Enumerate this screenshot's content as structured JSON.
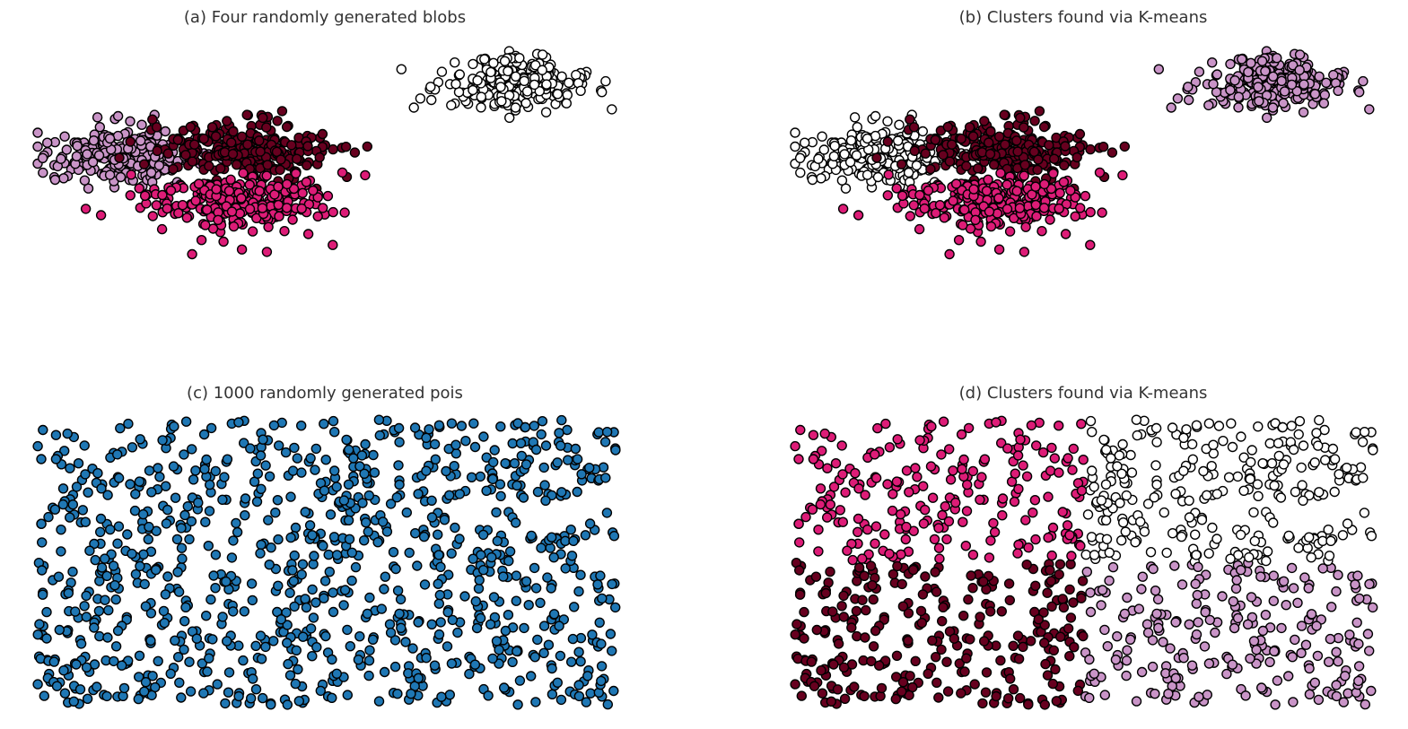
{
  "chart_data": [
    {
      "type": "scatter",
      "title": "(a) Four randomly generated blobs",
      "xlim": [
        -6,
        5.6
      ],
      "ylim": [
        -3.2,
        2.9
      ],
      "grid": false,
      "axes_visible": false,
      "marker_edge_color": "#000000",
      "clusters": [
        {
          "color": "#ffffff",
          "n": 250,
          "center": [
            3.5,
            2.0
          ],
          "spread": [
            0.7,
            0.28
          ],
          "outliers": [
            [
              1.3,
              2.3
            ],
            [
              5.4,
              2.05
            ],
            [
              1.55,
              1.5
            ],
            [
              2.3,
              1.55
            ],
            [
              4.9,
              1.85
            ]
          ]
        },
        {
          "color": "#c994c7",
          "n": 250,
          "center": [
            -4.3,
            0.5
          ],
          "spread": [
            0.75,
            0.28
          ],
          "outliers": [
            [
              -4.8,
              1.3
            ],
            [
              -5.9,
              0.45
            ],
            [
              -5.65,
              0.0
            ],
            [
              -3.2,
              -0.05
            ],
            [
              -3.7,
              -0.05
            ]
          ]
        },
        {
          "color": "#67001f",
          "n": 250,
          "center": [
            -1.8,
            0.6
          ],
          "spread": [
            0.85,
            0.32
          ],
          "outliers": [
            [
              -1.8,
              1.35
            ],
            [
              -0.6,
              0.3
            ],
            [
              -3.6,
              0.6
            ],
            [
              -1.0,
              1.1
            ],
            [
              -2.5,
              -0.1
            ]
          ]
        },
        {
          "color": "#dd1c77",
          "n": 250,
          "center": [
            -2.0,
            -0.45
          ],
          "spread": [
            0.95,
            0.3
          ],
          "outliers": [
            [
              -2.9,
              -1.55
            ],
            [
              -1.4,
              -1.5
            ],
            [
              -1.9,
              -1.45
            ],
            [
              -3.4,
              -0.6
            ],
            [
              -0.7,
              -0.6
            ]
          ]
        }
      ]
    },
    {
      "type": "scatter",
      "title": "(b) Clusters found via K-means",
      "xlim": [
        -6,
        5.6
      ],
      "ylim": [
        -3.2,
        2.9
      ],
      "grid": false,
      "axes_visible": false,
      "marker_edge_color": "#000000",
      "clusters": [
        {
          "color": "#c994c7",
          "n": 250,
          "center": [
            3.5,
            2.0
          ],
          "spread": [
            0.7,
            0.28
          ],
          "outliers": [
            [
              1.3,
              2.3
            ],
            [
              5.4,
              2.05
            ],
            [
              1.55,
              1.5
            ],
            [
              2.3,
              1.55
            ],
            [
              4.9,
              1.85
            ]
          ]
        },
        {
          "color": "#ffffff",
          "n": 250,
          "center": [
            -4.3,
            0.5
          ],
          "spread": [
            0.75,
            0.28
          ],
          "outliers": [
            [
              -4.8,
              1.3
            ],
            [
              -5.9,
              0.45
            ],
            [
              -5.65,
              0.0
            ],
            [
              -3.2,
              -0.05
            ],
            [
              -3.7,
              -0.05
            ]
          ]
        },
        {
          "color": "#67001f",
          "n": 250,
          "center": [
            -1.8,
            0.6
          ],
          "spread": [
            0.85,
            0.32
          ],
          "outliers": [
            [
              -1.8,
              1.35
            ],
            [
              -0.6,
              0.3
            ],
            [
              -3.6,
              0.6
            ],
            [
              -1.0,
              1.1
            ],
            [
              -2.5,
              -0.1
            ]
          ]
        },
        {
          "color": "#dd1c77",
          "n": 250,
          "center": [
            -2.0,
            -0.45
          ],
          "spread": [
            0.95,
            0.3
          ],
          "outliers": [
            [
              -2.9,
              -1.55
            ],
            [
              -1.4,
              -1.5
            ],
            [
              -1.9,
              -1.45
            ],
            [
              -3.4,
              -0.6
            ],
            [
              -0.7,
              -0.6
            ]
          ]
        }
      ]
    },
    {
      "type": "scatter",
      "title": "(c) 1000 randomly generated pois",
      "n_points": 1000,
      "distribution": "uniform",
      "xlim": [
        0,
        1
      ],
      "ylim": [
        0,
        1
      ],
      "grid": false,
      "axes_visible": false,
      "color": "#1f77b4",
      "marker_edge_color": "#000000"
    },
    {
      "type": "scatter",
      "title": "(d) Clusters found via K-means",
      "n_points": 1000,
      "distribution": "uniform",
      "xlim": [
        0,
        1
      ],
      "ylim": [
        0,
        1
      ],
      "grid": false,
      "axes_visible": false,
      "marker_edge_color": "#000000",
      "x_split": 0.5,
      "y_split": 0.5,
      "quadrant_colors": {
        "top_left": "#dd1c77",
        "bottom_left": "#67001f",
        "top_right": "#ffffff",
        "bottom_right": "#c994c7"
      }
    }
  ]
}
